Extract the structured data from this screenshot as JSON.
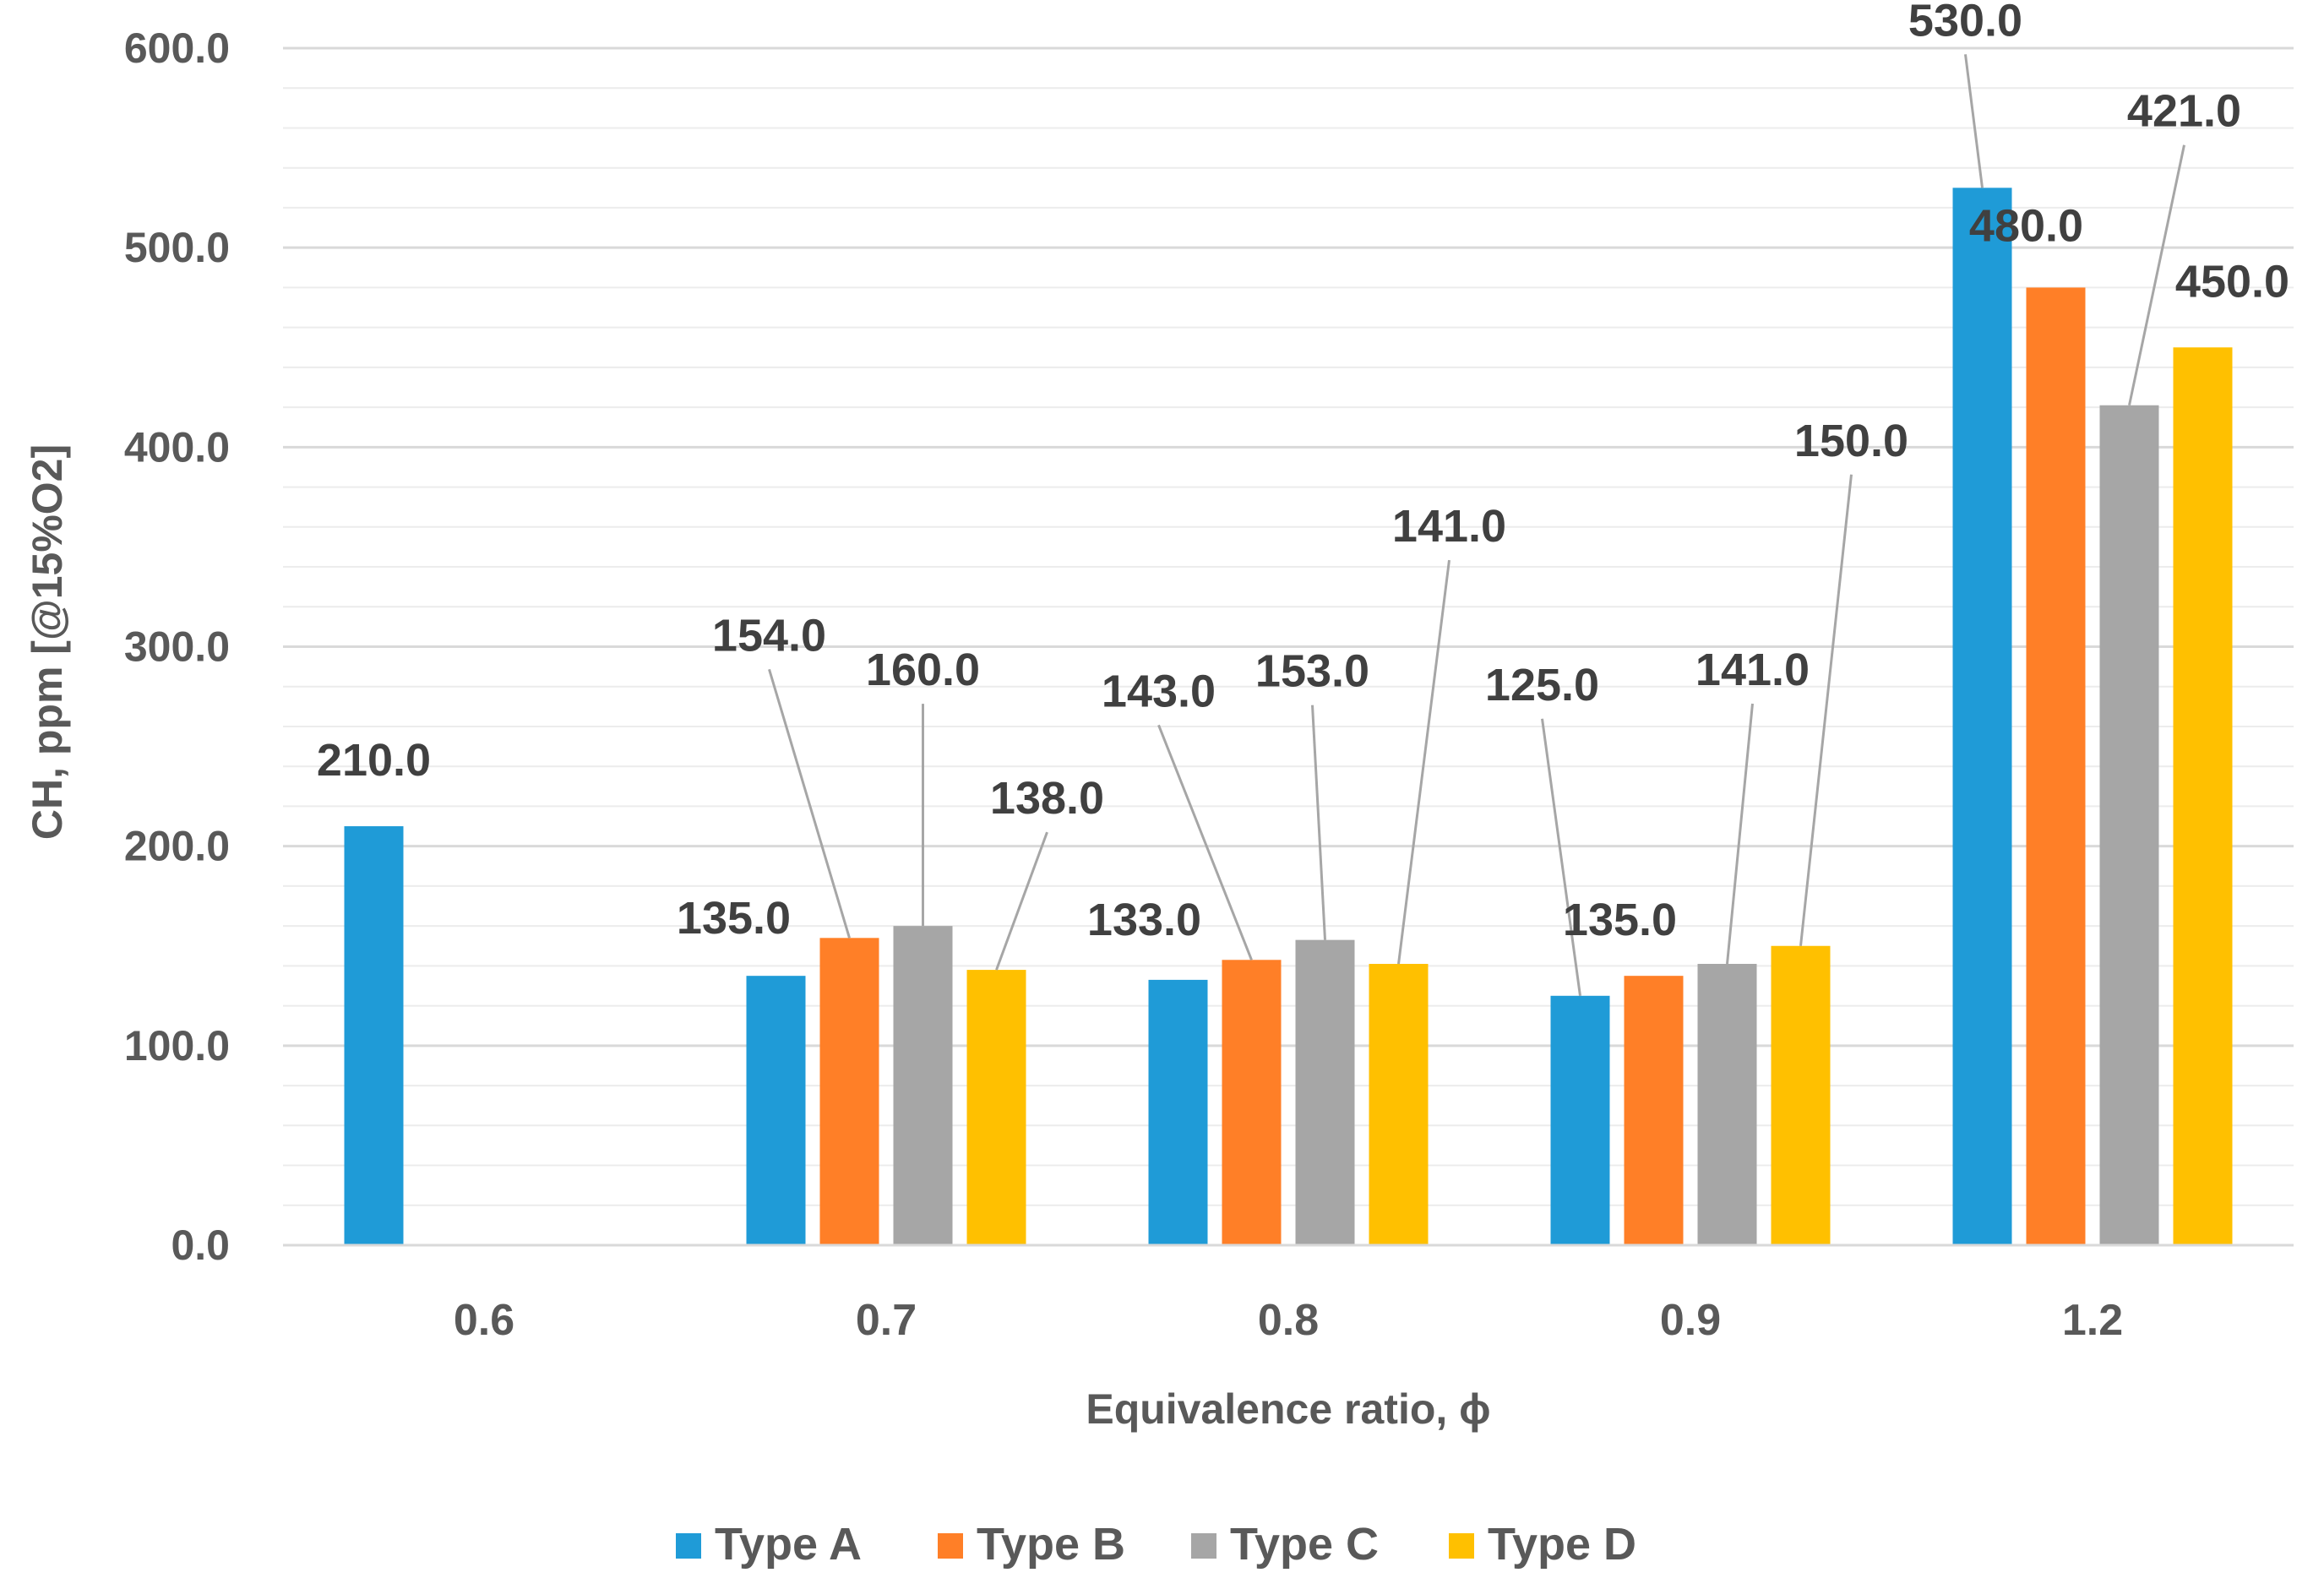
{
  "chart_data": {
    "type": "bar",
    "title": "",
    "xlabel": "Equivalence ratio, ϕ",
    "ylabel": "CH, ppm [@15%O2]",
    "ylim": [
      0,
      600
    ],
    "major_tick_step": 100,
    "minor_grid_step": 20,
    "categories": [
      "0.6",
      "0.7",
      "0.8",
      "0.9",
      "1.2"
    ],
    "series": [
      {
        "name": "Type A",
        "color": "#1F9BD7",
        "values": [
          210,
          135,
          133,
          125,
          530
        ],
        "labels": [
          "210.0",
          "135.0",
          "133.0",
          "125.0",
          "530.0"
        ]
      },
      {
        "name": "Type B",
        "color": "#FF7F27",
        "values": [
          null,
          154,
          143,
          135,
          480
        ],
        "labels": [
          null,
          "154.0",
          "143.0",
          "135.0",
          "480.0"
        ]
      },
      {
        "name": "Type C",
        "color": "#A6A6A6",
        "values": [
          null,
          160,
          153,
          141,
          421
        ],
        "labels": [
          null,
          "160.0",
          "153.0",
          "141.0",
          "421.0"
        ]
      },
      {
        "name": "Type D",
        "color": "#FFC000",
        "values": [
          null,
          138,
          141,
          150,
          450
        ],
        "labels": [
          null,
          "138.0",
          "141.0",
          "150.0",
          "450.0"
        ]
      }
    ],
    "ytick_labels": [
      "0.0",
      "100.0",
      "200.0",
      "300.0",
      "400.0",
      "500.0",
      "600.0"
    ],
    "grid": true,
    "legend_position": "bottom"
  }
}
